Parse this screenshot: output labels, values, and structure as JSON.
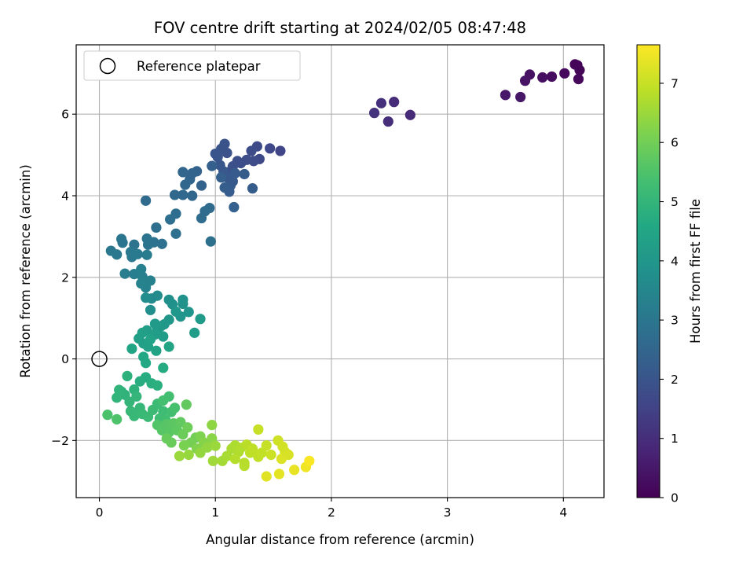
{
  "chart_data": {
    "type": "scatter",
    "title": "FOV centre drift starting at 2024/02/05 08:47:48",
    "xlabel": "Angular distance from reference (arcmin)",
    "ylabel": "Rotation from reference (arcmin)",
    "colorbar_label": "Hours from first FF file",
    "xlim": [
      -0.2,
      4.35
    ],
    "ylim": [
      -3.4,
      7.7
    ],
    "xticks": [
      0,
      1,
      2,
      3,
      4
    ],
    "xtick_labels": [
      "0",
      "1",
      "2",
      "3",
      "4"
    ],
    "yticks": [
      -2,
      0,
      2,
      4,
      6
    ],
    "ytick_labels": [
      "−2",
      "0",
      "2",
      "4",
      "6"
    ],
    "colorbar_range": [
      0,
      7.65
    ],
    "colorbar_ticks": [
      0,
      1,
      2,
      3,
      4,
      5,
      6,
      7
    ],
    "colorbar_tick_labels": [
      "0",
      "1",
      "2",
      "3",
      "4",
      "5",
      "6",
      "7"
    ],
    "colormap": "viridis",
    "grid": true,
    "legend": {
      "placement": "top-left",
      "entries": [
        "Reference platepar"
      ]
    },
    "reference_point": {
      "x": 0,
      "y": 0
    },
    "points": [
      {
        "x": 4.12,
        "y": 7.2,
        "t": 0.05
      },
      {
        "x": 4.14,
        "y": 7.08,
        "t": 0.1
      },
      {
        "x": 4.1,
        "y": 7.22,
        "t": 0.12
      },
      {
        "x": 4.13,
        "y": 6.86,
        "t": 0.15
      },
      {
        "x": 4.01,
        "y": 7.0,
        "t": 0.2
      },
      {
        "x": 3.9,
        "y": 6.92,
        "t": 0.25
      },
      {
        "x": 3.82,
        "y": 6.9,
        "t": 0.3
      },
      {
        "x": 3.71,
        "y": 6.97,
        "t": 0.35
      },
      {
        "x": 3.67,
        "y": 6.82,
        "t": 0.4
      },
      {
        "x": 3.63,
        "y": 6.42,
        "t": 0.45
      },
      {
        "x": 3.5,
        "y": 6.47,
        "t": 0.5
      },
      {
        "x": 2.68,
        "y": 5.98,
        "t": 0.9
      },
      {
        "x": 2.54,
        "y": 6.3,
        "t": 0.95
      },
      {
        "x": 2.49,
        "y": 5.82,
        "t": 1.0
      },
      {
        "x": 2.43,
        "y": 6.27,
        "t": 1.05
      },
      {
        "x": 2.37,
        "y": 6.03,
        "t": 1.1
      },
      {
        "x": 1.56,
        "y": 5.1,
        "t": 1.6
      },
      {
        "x": 1.47,
        "y": 5.16,
        "t": 1.65
      },
      {
        "x": 1.38,
        "y": 4.9,
        "t": 1.7
      },
      {
        "x": 1.36,
        "y": 5.21,
        "t": 1.72
      },
      {
        "x": 1.33,
        "y": 4.85,
        "t": 1.75
      },
      {
        "x": 1.31,
        "y": 5.1,
        "t": 1.78
      },
      {
        "x": 1.27,
        "y": 4.88,
        "t": 1.8
      },
      {
        "x": 1.22,
        "y": 4.8,
        "t": 1.82
      },
      {
        "x": 1.19,
        "y": 4.85,
        "t": 1.85
      },
      {
        "x": 1.15,
        "y": 4.72,
        "t": 1.88
      },
      {
        "x": 1.13,
        "y": 4.6,
        "t": 1.9
      },
      {
        "x": 1.1,
        "y": 5.05,
        "t": 1.92
      },
      {
        "x": 1.08,
        "y": 5.27,
        "t": 1.95
      },
      {
        "x": 1.05,
        "y": 5.15,
        "t": 1.97
      },
      {
        "x": 1.02,
        "y": 4.95,
        "t": 2.0
      },
      {
        "x": 1.0,
        "y": 5.03,
        "t": 2.02
      },
      {
        "x": 1.04,
        "y": 4.75,
        "t": 2.05
      },
      {
        "x": 1.07,
        "y": 4.6,
        "t": 2.07
      },
      {
        "x": 1.1,
        "y": 4.45,
        "t": 2.1
      },
      {
        "x": 1.13,
        "y": 4.25,
        "t": 2.12
      },
      {
        "x": 1.15,
        "y": 4.35,
        "t": 2.15
      },
      {
        "x": 1.17,
        "y": 4.55,
        "t": 2.18
      },
      {
        "x": 1.25,
        "y": 4.53,
        "t": 2.2
      },
      {
        "x": 1.32,
        "y": 4.18,
        "t": 2.22
      },
      {
        "x": 1.12,
        "y": 4.1,
        "t": 2.25
      },
      {
        "x": 1.08,
        "y": 4.2,
        "t": 2.28
      },
      {
        "x": 1.05,
        "y": 4.45,
        "t": 2.3
      },
      {
        "x": 0.97,
        "y": 4.73,
        "t": 2.32
      },
      {
        "x": 1.16,
        "y": 3.72,
        "t": 2.35
      },
      {
        "x": 0.88,
        "y": 4.25,
        "t": 2.4
      },
      {
        "x": 0.84,
        "y": 4.6,
        "t": 2.42
      },
      {
        "x": 0.8,
        "y": 4.55,
        "t": 2.45
      },
      {
        "x": 0.78,
        "y": 4.4,
        "t": 2.48
      },
      {
        "x": 0.72,
        "y": 4.58,
        "t": 2.5
      },
      {
        "x": 0.74,
        "y": 4.27,
        "t": 2.53
      },
      {
        "x": 0.8,
        "y": 4.0,
        "t": 2.55
      },
      {
        "x": 0.72,
        "y": 4.02,
        "t": 2.58
      },
      {
        "x": 0.65,
        "y": 4.02,
        "t": 2.6
      },
      {
        "x": 0.4,
        "y": 3.88,
        "t": 2.62
      },
      {
        "x": 0.95,
        "y": 3.7,
        "t": 2.65
      },
      {
        "x": 0.91,
        "y": 3.62,
        "t": 2.68
      },
      {
        "x": 0.88,
        "y": 3.45,
        "t": 2.7
      },
      {
        "x": 0.66,
        "y": 3.56,
        "t": 2.72
      },
      {
        "x": 0.61,
        "y": 3.42,
        "t": 2.75
      },
      {
        "x": 0.49,
        "y": 3.22,
        "t": 2.78
      },
      {
        "x": 0.66,
        "y": 3.07,
        "t": 2.8
      },
      {
        "x": 0.96,
        "y": 2.88,
        "t": 2.82
      },
      {
        "x": 0.54,
        "y": 2.82,
        "t": 2.85
      },
      {
        "x": 0.47,
        "y": 2.86,
        "t": 2.88
      },
      {
        "x": 0.42,
        "y": 2.8,
        "t": 2.9
      },
      {
        "x": 0.41,
        "y": 2.95,
        "t": 2.92
      },
      {
        "x": 0.3,
        "y": 2.8,
        "t": 2.95
      },
      {
        "x": 0.19,
        "y": 2.94,
        "t": 2.98
      },
      {
        "x": 0.2,
        "y": 2.85,
        "t": 3.0
      },
      {
        "x": 0.1,
        "y": 2.65,
        "t": 3.03
      },
      {
        "x": 0.15,
        "y": 2.56,
        "t": 3.05
      },
      {
        "x": 0.28,
        "y": 2.5,
        "t": 3.08
      },
      {
        "x": 0.27,
        "y": 2.62,
        "t": 3.1
      },
      {
        "x": 0.33,
        "y": 2.57,
        "t": 3.12
      },
      {
        "x": 0.41,
        "y": 2.55,
        "t": 3.15
      },
      {
        "x": 0.22,
        "y": 2.09,
        "t": 3.2
      },
      {
        "x": 0.3,
        "y": 2.08,
        "t": 3.23
      },
      {
        "x": 0.37,
        "y": 2.02,
        "t": 3.26
      },
      {
        "x": 0.36,
        "y": 2.2,
        "t": 3.3
      },
      {
        "x": 0.44,
        "y": 1.92,
        "t": 3.33
      },
      {
        "x": 0.36,
        "y": 1.85,
        "t": 3.36
      },
      {
        "x": 0.4,
        "y": 1.75,
        "t": 3.4
      },
      {
        "x": 0.45,
        "y": 1.48,
        "t": 3.6
      },
      {
        "x": 0.5,
        "y": 1.55,
        "t": 3.65
      },
      {
        "x": 0.4,
        "y": 1.5,
        "t": 3.7
      },
      {
        "x": 0.44,
        "y": 1.2,
        "t": 3.75
      },
      {
        "x": 0.6,
        "y": 1.45,
        "t": 3.8
      },
      {
        "x": 0.63,
        "y": 1.34,
        "t": 3.83
      },
      {
        "x": 0.72,
        "y": 1.45,
        "t": 3.86
      },
      {
        "x": 0.72,
        "y": 1.35,
        "t": 3.9
      },
      {
        "x": 0.77,
        "y": 1.15,
        "t": 3.93
      },
      {
        "x": 0.7,
        "y": 1.04,
        "t": 3.96
      },
      {
        "x": 0.66,
        "y": 1.16,
        "t": 4.0
      },
      {
        "x": 0.6,
        "y": 0.96,
        "t": 4.02
      },
      {
        "x": 0.56,
        "y": 0.85,
        "t": 4.05
      },
      {
        "x": 0.53,
        "y": 0.8,
        "t": 4.08
      },
      {
        "x": 0.5,
        "y": 0.73,
        "t": 4.1
      },
      {
        "x": 0.48,
        "y": 0.86,
        "t": 4.12
      },
      {
        "x": 0.87,
        "y": 0.98,
        "t": 4.15
      },
      {
        "x": 0.82,
        "y": 0.64,
        "t": 4.18
      },
      {
        "x": 0.55,
        "y": 0.55,
        "t": 4.2
      },
      {
        "x": 0.48,
        "y": 0.6,
        "t": 4.22
      },
      {
        "x": 0.41,
        "y": 0.7,
        "t": 4.25
      },
      {
        "x": 0.37,
        "y": 0.64,
        "t": 4.28
      },
      {
        "x": 0.34,
        "y": 0.5,
        "t": 4.3
      },
      {
        "x": 0.38,
        "y": 0.38,
        "t": 4.33
      },
      {
        "x": 0.42,
        "y": 0.3,
        "t": 4.36
      },
      {
        "x": 0.44,
        "y": 0.48,
        "t": 4.4
      },
      {
        "x": 0.49,
        "y": 0.2,
        "t": 4.43
      },
      {
        "x": 0.6,
        "y": 0.3,
        "t": 4.46
      },
      {
        "x": 0.28,
        "y": 0.25,
        "t": 4.5
      },
      {
        "x": 0.38,
        "y": 0.05,
        "t": 4.55
      },
      {
        "x": 0.4,
        "y": -0.1,
        "t": 4.6
      },
      {
        "x": 0.55,
        "y": -0.22,
        "t": 4.65
      },
      {
        "x": 0.4,
        "y": -0.45,
        "t": 4.7
      },
      {
        "x": 0.35,
        "y": -0.55,
        "t": 4.75
      },
      {
        "x": 0.45,
        "y": -0.6,
        "t": 4.78
      },
      {
        "x": 0.5,
        "y": -0.65,
        "t": 4.82
      },
      {
        "x": 0.24,
        "y": -0.42,
        "t": 4.85
      },
      {
        "x": 0.3,
        "y": -0.75,
        "t": 4.88
      },
      {
        "x": 0.19,
        "y": -0.8,
        "t": 4.9
      },
      {
        "x": 0.22,
        "y": -0.88,
        "t": 4.92
      },
      {
        "x": 0.17,
        "y": -0.76,
        "t": 4.95
      },
      {
        "x": 0.15,
        "y": -0.95,
        "t": 4.98
      },
      {
        "x": 0.26,
        "y": -1.05,
        "t": 5.0
      },
      {
        "x": 0.32,
        "y": -0.92,
        "t": 5.02
      },
      {
        "x": 0.35,
        "y": -1.2,
        "t": 5.05
      },
      {
        "x": 0.27,
        "y": -1.28,
        "t": 5.08
      },
      {
        "x": 0.3,
        "y": -1.4,
        "t": 5.1
      },
      {
        "x": 0.37,
        "y": -1.35,
        "t": 5.12
      },
      {
        "x": 0.42,
        "y": -1.42,
        "t": 5.15
      },
      {
        "x": 0.46,
        "y": -1.25,
        "t": 5.18
      },
      {
        "x": 0.5,
        "y": -1.1,
        "t": 5.2
      },
      {
        "x": 0.55,
        "y": -1.28,
        "t": 5.22
      },
      {
        "x": 0.52,
        "y": -1.46,
        "t": 5.25
      },
      {
        "x": 0.57,
        "y": -1.5,
        "t": 5.28
      },
      {
        "x": 0.62,
        "y": -1.3,
        "t": 5.3
      },
      {
        "x": 0.6,
        "y": -0.92,
        "t": 5.33
      },
      {
        "x": 0.55,
        "y": -1.02,
        "t": 5.36
      },
      {
        "x": 0.65,
        "y": -1.2,
        "t": 5.4
      },
      {
        "x": 0.07,
        "y": -1.37,
        "t": 5.45
      },
      {
        "x": 0.15,
        "y": -1.48,
        "t": 5.5
      },
      {
        "x": 0.5,
        "y": -1.62,
        "t": 5.55
      },
      {
        "x": 0.54,
        "y": -1.75,
        "t": 5.6
      },
      {
        "x": 0.58,
        "y": -1.6,
        "t": 5.62
      },
      {
        "x": 0.6,
        "y": -1.8,
        "t": 5.65
      },
      {
        "x": 0.64,
        "y": -1.58,
        "t": 5.7
      },
      {
        "x": 0.67,
        "y": -1.75,
        "t": 5.73
      },
      {
        "x": 0.7,
        "y": -1.55,
        "t": 5.76
      },
      {
        "x": 0.75,
        "y": -1.12,
        "t": 5.8
      },
      {
        "x": 0.58,
        "y": -1.95,
        "t": 5.85
      },
      {
        "x": 0.62,
        "y": -2.05,
        "t": 5.88
      },
      {
        "x": 0.72,
        "y": -1.85,
        "t": 5.92
      },
      {
        "x": 0.76,
        "y": -1.68,
        "t": 5.95
      },
      {
        "x": 0.83,
        "y": -1.93,
        "t": 6.0
      },
      {
        "x": 0.79,
        "y": -2.05,
        "t": 6.05
      },
      {
        "x": 0.73,
        "y": -2.12,
        "t": 6.1
      },
      {
        "x": 0.87,
        "y": -1.9,
        "t": 6.15
      },
      {
        "x": 0.84,
        "y": -2.2,
        "t": 6.2
      },
      {
        "x": 0.9,
        "y": -2.05,
        "t": 6.25
      },
      {
        "x": 0.97,
        "y": -1.95,
        "t": 6.3
      },
      {
        "x": 0.97,
        "y": -1.62,
        "t": 6.35
      },
      {
        "x": 0.93,
        "y": -2.17,
        "t": 6.4
      },
      {
        "x": 0.87,
        "y": -2.3,
        "t": 6.42
      },
      {
        "x": 0.77,
        "y": -2.35,
        "t": 6.45
      },
      {
        "x": 0.69,
        "y": -2.38,
        "t": 6.48
      },
      {
        "x": 1.0,
        "y": -2.13,
        "t": 6.5
      },
      {
        "x": 0.98,
        "y": -2.5,
        "t": 6.55
      },
      {
        "x": 1.06,
        "y": -2.5,
        "t": 6.6
      },
      {
        "x": 1.1,
        "y": -2.38,
        "t": 6.65
      },
      {
        "x": 1.14,
        "y": -2.2,
        "t": 6.68
      },
      {
        "x": 1.17,
        "y": -2.12,
        "t": 6.7
      },
      {
        "x": 1.2,
        "y": -2.28,
        "t": 6.72
      },
      {
        "x": 1.22,
        "y": -2.18,
        "t": 6.75
      },
      {
        "x": 1.17,
        "y": -2.45,
        "t": 6.78
      },
      {
        "x": 1.25,
        "y": -2.55,
        "t": 6.8
      },
      {
        "x": 1.25,
        "y": -2.62,
        "t": 6.82
      },
      {
        "x": 1.27,
        "y": -2.1,
        "t": 6.85
      },
      {
        "x": 1.3,
        "y": -2.3,
        "t": 6.88
      },
      {
        "x": 1.32,
        "y": -2.2,
        "t": 6.9
      },
      {
        "x": 1.37,
        "y": -2.4,
        "t": 6.92
      },
      {
        "x": 1.4,
        "y": -2.3,
        "t": 6.95
      },
      {
        "x": 1.44,
        "y": -2.12,
        "t": 6.98
      },
      {
        "x": 1.37,
        "y": -1.73,
        "t": 7.0
      },
      {
        "x": 1.48,
        "y": -2.35,
        "t": 7.05
      },
      {
        "x": 1.54,
        "y": -2.0,
        "t": 7.1
      },
      {
        "x": 1.58,
        "y": -2.15,
        "t": 7.12
      },
      {
        "x": 1.6,
        "y": -2.28,
        "t": 7.15
      },
      {
        "x": 1.63,
        "y": -2.35,
        "t": 7.2
      },
      {
        "x": 1.57,
        "y": -2.45,
        "t": 7.25
      },
      {
        "x": 1.44,
        "y": -2.88,
        "t": 7.3
      },
      {
        "x": 1.55,
        "y": -2.82,
        "t": 7.35
      },
      {
        "x": 1.68,
        "y": -2.72,
        "t": 7.4
      },
      {
        "x": 1.78,
        "y": -2.65,
        "t": 7.5
      },
      {
        "x": 1.81,
        "y": -2.5,
        "t": 7.6
      }
    ]
  }
}
